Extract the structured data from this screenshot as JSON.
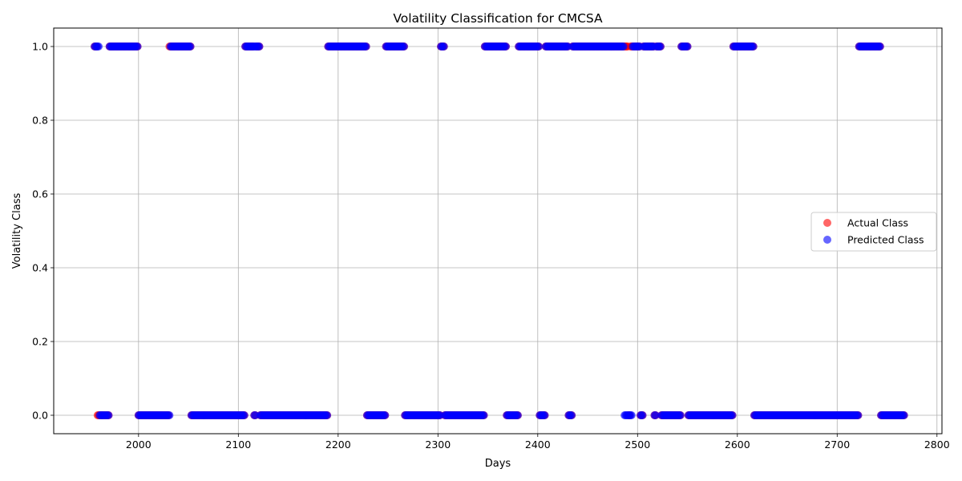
{
  "chart_data": {
    "type": "scatter",
    "title": "Volatility Classification for CMCSA",
    "xlabel": "Days",
    "ylabel": "Volatility Class",
    "xlim": [
      1915,
      2805
    ],
    "ylim": [
      -0.05,
      1.05
    ],
    "x_ticks": [
      "2000",
      "2100",
      "2200",
      "2300",
      "2400",
      "2500",
      "2600",
      "2700",
      "2800"
    ],
    "y_ticks": [
      "0.0",
      "0.2",
      "0.4",
      "0.6",
      "0.8",
      "1.0"
    ],
    "grid": true,
    "legend_position": "center-right",
    "colors": {
      "actual": "#ff0000",
      "predicted": "#0000ff"
    },
    "legend": [
      "Actual Class",
      "Predicted Class"
    ],
    "series": [
      {
        "name": "Actual Class",
        "color": "#ff0000",
        "segments": [
          {
            "y": 1,
            "from": 1956,
            "to": 1958
          },
          {
            "y": 0,
            "from": 1959,
            "to": 1970
          },
          {
            "y": 1,
            "from": 1971,
            "to": 1999
          },
          {
            "y": 0,
            "from": 2000,
            "to": 2030
          },
          {
            "y": 1,
            "from": 2031,
            "to": 2052
          },
          {
            "y": 0,
            "from": 2053,
            "to": 2106
          },
          {
            "y": 1,
            "from": 2107,
            "to": 2115
          },
          {
            "y": 0,
            "from": 2116,
            "to": 2117
          },
          {
            "y": 1,
            "from": 2118,
            "to": 2121
          },
          {
            "y": 0,
            "from": 2122,
            "to": 2189
          },
          {
            "y": 1,
            "from": 2190,
            "to": 2228
          },
          {
            "y": 0,
            "from": 2229,
            "to": 2247
          },
          {
            "y": 1,
            "from": 2248,
            "to": 2266
          },
          {
            "y": 0,
            "from": 2267,
            "to": 2302
          },
          {
            "y": 1,
            "from": 2303,
            "to": 2306
          },
          {
            "y": 0,
            "from": 2307,
            "to": 2346
          },
          {
            "y": 1,
            "from": 2347,
            "to": 2368
          },
          {
            "y": 0,
            "from": 2369,
            "to": 2380
          },
          {
            "y": 1,
            "from": 2381,
            "to": 2401
          },
          {
            "y": 0,
            "from": 2402,
            "to": 2407
          },
          {
            "y": 1,
            "from": 2408,
            "to": 2430
          },
          {
            "y": 0,
            "from": 2431,
            "to": 2434
          },
          {
            "y": 1,
            "from": 2435,
            "to": 2490
          },
          {
            "y": 0,
            "from": 2491,
            "to": 2492
          },
          {
            "y": 1,
            "from": 2493,
            "to": 2502
          },
          {
            "y": 0,
            "from": 2503,
            "to": 2505
          },
          {
            "y": 1,
            "from": 2506,
            "to": 2516
          },
          {
            "y": 0,
            "from": 2517,
            "to": 2518
          },
          {
            "y": 1,
            "from": 2519,
            "to": 2523
          },
          {
            "y": 0,
            "from": 2524,
            "to": 2543
          },
          {
            "y": 1,
            "from": 2544,
            "to": 2550
          },
          {
            "y": 0,
            "from": 2551,
            "to": 2595
          },
          {
            "y": 1,
            "from": 2596,
            "to": 2616
          },
          {
            "y": 0,
            "from": 2617,
            "to": 2721
          },
          {
            "y": 1,
            "from": 2722,
            "to": 2743
          },
          {
            "y": 0,
            "from": 2744,
            "to": 2767
          }
        ]
      },
      {
        "name": "Predicted Class",
        "color": "#0000ff",
        "segments": [
          {
            "y": 1,
            "from": 1956,
            "to": 1960
          },
          {
            "y": 0,
            "from": 1961,
            "to": 1970
          },
          {
            "y": 1,
            "from": 1971,
            "to": 1999
          },
          {
            "y": 0,
            "from": 2000,
            "to": 2031
          },
          {
            "y": 1,
            "from": 2032,
            "to": 2052
          },
          {
            "y": 0,
            "from": 2053,
            "to": 2106
          },
          {
            "y": 1,
            "from": 2107,
            "to": 2121
          },
          {
            "y": 0,
            "from": 2116,
            "to": 2117
          },
          {
            "y": 0,
            "from": 2122,
            "to": 2189
          },
          {
            "y": 1,
            "from": 2190,
            "to": 2228
          },
          {
            "y": 0,
            "from": 2229,
            "to": 2247
          },
          {
            "y": 1,
            "from": 2248,
            "to": 2266
          },
          {
            "y": 0,
            "from": 2267,
            "to": 2302
          },
          {
            "y": 1,
            "from": 2303,
            "to": 2306
          },
          {
            "y": 0,
            "from": 2307,
            "to": 2346
          },
          {
            "y": 1,
            "from": 2347,
            "to": 2368
          },
          {
            "y": 0,
            "from": 2369,
            "to": 2380
          },
          {
            "y": 1,
            "from": 2381,
            "to": 2401
          },
          {
            "y": 0,
            "from": 2402,
            "to": 2407
          },
          {
            "y": 1,
            "from": 2408,
            "to": 2430
          },
          {
            "y": 0,
            "from": 2431,
            "to": 2434
          },
          {
            "y": 1,
            "from": 2435,
            "to": 2486
          },
          {
            "y": 0,
            "from": 2487,
            "to": 2494
          },
          {
            "y": 1,
            "from": 2495,
            "to": 2502
          },
          {
            "y": 0,
            "from": 2503,
            "to": 2505
          },
          {
            "y": 1,
            "from": 2506,
            "to": 2516
          },
          {
            "y": 0,
            "from": 2517,
            "to": 2518
          },
          {
            "y": 1,
            "from": 2519,
            "to": 2523
          },
          {
            "y": 0,
            "from": 2524,
            "to": 2543
          },
          {
            "y": 1,
            "from": 2544,
            "to": 2550
          },
          {
            "y": 0,
            "from": 2551,
            "to": 2595
          },
          {
            "y": 1,
            "from": 2596,
            "to": 2616
          },
          {
            "y": 0,
            "from": 2617,
            "to": 2721
          },
          {
            "y": 1,
            "from": 2722,
            "to": 2743
          },
          {
            "y": 0,
            "from": 2744,
            "to": 2767
          }
        ]
      }
    ]
  }
}
